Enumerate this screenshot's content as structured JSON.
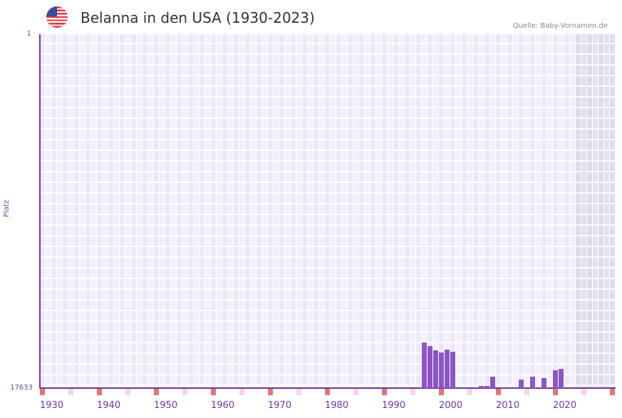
{
  "header": {
    "title": "Belanna in den USA (1930-2023)",
    "source": "Quelle: Baby-Vornamen.de",
    "flag_icon": "us-flag-icon"
  },
  "colors": {
    "bar": "#8c55c6",
    "axis": "#6b3aa0",
    "decade_mark": "#e5737a",
    "half_decade_mark": "#f5d6de",
    "grid_a": "#ede8f8",
    "grid_b": "#f3f0fb"
  },
  "chart_data": {
    "type": "bar",
    "title": "Belanna in den USA (1930-2023)",
    "xlabel": "",
    "ylabel": "Platz",
    "y_inverted": true,
    "ylim": [
      1,
      17633
    ],
    "xlim": [
      1930,
      2030
    ],
    "x_tick_labels": [
      "1930",
      "1940",
      "1950",
      "1960",
      "1970",
      "1980",
      "1990",
      "2000",
      "2010",
      "2020"
    ],
    "y_tick_labels": [
      "1",
      "17633"
    ],
    "grid": true,
    "shaded_future_from": 2024,
    "categories": [
      1997,
      1998,
      1999,
      2000,
      2001,
      2002,
      2007,
      2008,
      2009,
      2014,
      2016,
      2018,
      2020,
      2021
    ],
    "values": [
      15360,
      15540,
      15750,
      15860,
      15720,
      15820,
      17530,
      17530,
      17070,
      17210,
      17070,
      17140,
      16750,
      16680
    ]
  },
  "axes": {
    "y_top": "1",
    "y_bottom": "17633",
    "y_title": "Platz",
    "x_labels": [
      "1930",
      "1940",
      "1950",
      "1960",
      "1970",
      "1980",
      "1990",
      "2000",
      "2010",
      "2020"
    ]
  }
}
